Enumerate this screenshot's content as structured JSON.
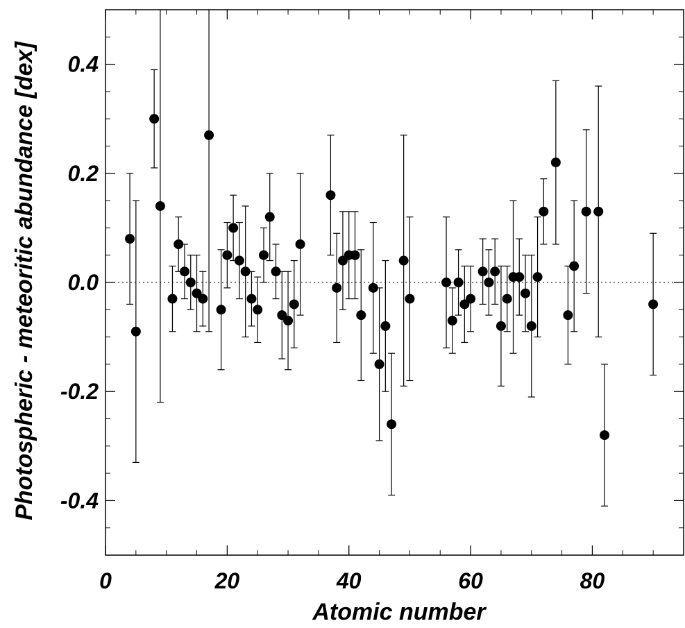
{
  "chart_data": {
    "type": "scatter",
    "xlabel": "Atomic number",
    "ylabel": "Photospheric - meteoritic abundance [dex]",
    "xlim": [
      0,
      95
    ],
    "ylim": [
      -0.5,
      0.5
    ],
    "x_ticks": [
      0,
      20,
      40,
      60,
      80
    ],
    "x_tick_labels": [
      "0",
      "20",
      "40",
      "60",
      "80"
    ],
    "y_ticks": [
      -0.4,
      -0.2,
      0.0,
      0.2,
      0.4
    ],
    "y_tick_labels": [
      "-0.4",
      "-0.2",
      "0.0",
      "0.2",
      "0.4"
    ],
    "reference_line": 0.0,
    "grid": false,
    "marker_color": "#000000",
    "points": [
      {
        "x": 4,
        "y": 0.08,
        "ylow": -0.04,
        "yhigh": 0.2
      },
      {
        "x": 5,
        "y": -0.09,
        "ylow": -0.33,
        "yhigh": 0.15
      },
      {
        "x": 8,
        "y": 0.3,
        "ylow": 0.21,
        "yhigh": 0.39
      },
      {
        "x": 9,
        "y": 0.14,
        "ylow": -0.22,
        "yhigh": 0.5
      },
      {
        "x": 11,
        "y": -0.03,
        "ylow": -0.09,
        "yhigh": 0.03
      },
      {
        "x": 12,
        "y": 0.07,
        "ylow": 0.02,
        "yhigh": 0.12
      },
      {
        "x": 13,
        "y": 0.02,
        "ylow": -0.03,
        "yhigh": 0.07
      },
      {
        "x": 14,
        "y": 0.0,
        "ylow": -0.05,
        "yhigh": 0.05
      },
      {
        "x": 15,
        "y": -0.02,
        "ylow": -0.09,
        "yhigh": 0.05
      },
      {
        "x": 16,
        "y": -0.03,
        "ylow": -0.08,
        "yhigh": 0.02
      },
      {
        "x": 17,
        "y": 0.27,
        "ylow": -0.09,
        "yhigh": 0.5
      },
      {
        "x": 19,
        "y": -0.05,
        "ylow": -0.16,
        "yhigh": 0.06
      },
      {
        "x": 20,
        "y": 0.05,
        "ylow": -0.01,
        "yhigh": 0.11
      },
      {
        "x": 21,
        "y": 0.1,
        "ylow": 0.04,
        "yhigh": 0.16
      },
      {
        "x": 22,
        "y": 0.04,
        "ylow": -0.03,
        "yhigh": 0.11
      },
      {
        "x": 23,
        "y": 0.02,
        "ylow": -0.1,
        "yhigh": 0.14
      },
      {
        "x": 24,
        "y": -0.03,
        "ylow": -0.08,
        "yhigh": 0.02
      },
      {
        "x": 25,
        "y": -0.05,
        "ylow": -0.11,
        "yhigh": 0.01
      },
      {
        "x": 26,
        "y": 0.05,
        "ylow": 0.0,
        "yhigh": 0.1
      },
      {
        "x": 27,
        "y": 0.12,
        "ylow": 0.04,
        "yhigh": 0.2
      },
      {
        "x": 28,
        "y": 0.02,
        "ylow": -0.03,
        "yhigh": 0.07
      },
      {
        "x": 29,
        "y": -0.06,
        "ylow": -0.14,
        "yhigh": 0.02
      },
      {
        "x": 30,
        "y": -0.07,
        "ylow": -0.16,
        "yhigh": 0.02
      },
      {
        "x": 31,
        "y": -0.04,
        "ylow": -0.12,
        "yhigh": 0.04
      },
      {
        "x": 32,
        "y": 0.07,
        "ylow": -0.06,
        "yhigh": 0.2
      },
      {
        "x": 37,
        "y": 0.16,
        "ylow": 0.05,
        "yhigh": 0.27
      },
      {
        "x": 38,
        "y": -0.01,
        "ylow": -0.11,
        "yhigh": 0.09
      },
      {
        "x": 39,
        "y": 0.04,
        "ylow": -0.05,
        "yhigh": 0.13
      },
      {
        "x": 40,
        "y": 0.05,
        "ylow": -0.03,
        "yhigh": 0.13
      },
      {
        "x": 41,
        "y": 0.05,
        "ylow": -0.03,
        "yhigh": 0.13
      },
      {
        "x": 42,
        "y": -0.06,
        "ylow": -0.18,
        "yhigh": 0.06
      },
      {
        "x": 44,
        "y": -0.01,
        "ylow": -0.13,
        "yhigh": 0.11
      },
      {
        "x": 45,
        "y": -0.15,
        "ylow": -0.29,
        "yhigh": -0.01
      },
      {
        "x": 46,
        "y": -0.08,
        "ylow": -0.2,
        "yhigh": 0.04
      },
      {
        "x": 47,
        "y": -0.26,
        "ylow": -0.39,
        "yhigh": -0.13
      },
      {
        "x": 49,
        "y": 0.04,
        "ylow": -0.19,
        "yhigh": 0.27
      },
      {
        "x": 50,
        "y": -0.03,
        "ylow": -0.18,
        "yhigh": 0.12
      },
      {
        "x": 56,
        "y": 0.0,
        "ylow": -0.12,
        "yhigh": 0.12
      },
      {
        "x": 57,
        "y": -0.07,
        "ylow": -0.13,
        "yhigh": -0.01
      },
      {
        "x": 58,
        "y": 0.0,
        "ylow": -0.06,
        "yhigh": 0.06
      },
      {
        "x": 59,
        "y": -0.04,
        "ylow": -0.11,
        "yhigh": 0.03
      },
      {
        "x": 60,
        "y": -0.03,
        "ylow": -0.09,
        "yhigh": 0.03
      },
      {
        "x": 62,
        "y": 0.02,
        "ylow": -0.04,
        "yhigh": 0.08
      },
      {
        "x": 63,
        "y": 0.0,
        "ylow": -0.06,
        "yhigh": 0.06
      },
      {
        "x": 64,
        "y": 0.02,
        "ylow": -0.04,
        "yhigh": 0.08
      },
      {
        "x": 65,
        "y": -0.08,
        "ylow": -0.19,
        "yhigh": 0.03
      },
      {
        "x": 66,
        "y": -0.03,
        "ylow": -0.09,
        "yhigh": 0.03
      },
      {
        "x": 67,
        "y": 0.01,
        "ylow": -0.13,
        "yhigh": 0.15
      },
      {
        "x": 68,
        "y": 0.01,
        "ylow": -0.06,
        "yhigh": 0.08
      },
      {
        "x": 69,
        "y": -0.02,
        "ylow": -0.09,
        "yhigh": 0.05
      },
      {
        "x": 70,
        "y": -0.08,
        "ylow": -0.21,
        "yhigh": 0.05
      },
      {
        "x": 71,
        "y": 0.01,
        "ylow": -0.1,
        "yhigh": 0.12
      },
      {
        "x": 72,
        "y": 0.13,
        "ylow": 0.07,
        "yhigh": 0.19
      },
      {
        "x": 74,
        "y": 0.22,
        "ylow": 0.07,
        "yhigh": 0.37
      },
      {
        "x": 76,
        "y": -0.06,
        "ylow": -0.15,
        "yhigh": 0.03
      },
      {
        "x": 77,
        "y": 0.03,
        "ylow": -0.09,
        "yhigh": 0.15
      },
      {
        "x": 79,
        "y": 0.13,
        "ylow": -0.02,
        "yhigh": 0.28
      },
      {
        "x": 81,
        "y": 0.13,
        "ylow": -0.1,
        "yhigh": 0.36
      },
      {
        "x": 82,
        "y": -0.28,
        "ylow": -0.41,
        "yhigh": -0.15
      },
      {
        "x": 90,
        "y": -0.04,
        "ylow": -0.17,
        "yhigh": 0.09
      }
    ]
  }
}
